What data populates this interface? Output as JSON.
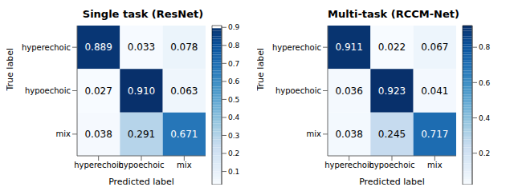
{
  "chart_data": [
    {
      "type": "heatmap",
      "title": "Single task (ResNet)",
      "x_label": "Predicted label",
      "y_label": "True label",
      "categories": [
        "hyperechoic",
        "hypoechoic",
        "mix"
      ],
      "y_categories": [
        "hyperechoic",
        "hypoechoic",
        "mix"
      ],
      "values": [
        [
          0.889,
          0.033,
          0.078
        ],
        [
          0.027,
          0.91,
          0.063
        ],
        [
          0.038,
          0.291,
          0.671
        ]
      ],
      "value_labels": [
        [
          "0.889",
          "0.033",
          "0.078"
        ],
        [
          "0.027",
          "0.910",
          "0.063"
        ],
        [
          "0.038",
          "0.291",
          "0.671"
        ]
      ],
      "colorbar_lim": [
        0.027,
        0.91
      ],
      "colorbar_ticks": [
        0.1,
        0.2,
        0.3,
        0.4,
        0.5,
        0.6,
        0.7,
        0.8,
        0.9
      ]
    },
    {
      "type": "heatmap",
      "title": "Multi-task (RCCM-Net)",
      "x_label": "Predicted label",
      "y_label": "True label",
      "categories": [
        "hyperechoic",
        "hypoechoic",
        "mix"
      ],
      "y_categories": [
        "hyperechoic",
        "hypoechoic",
        "mix"
      ],
      "values": [
        [
          0.911,
          0.022,
          0.067
        ],
        [
          0.036,
          0.923,
          0.041
        ],
        [
          0.038,
          0.245,
          0.717
        ]
      ],
      "value_labels": [
        [
          "0.911",
          "0.022",
          "0.067"
        ],
        [
          "0.036",
          "0.923",
          "0.041"
        ],
        [
          "0.038",
          "0.245",
          "0.717"
        ]
      ],
      "colorbar_lim": [
        0.022,
        0.923
      ],
      "colorbar_ticks": [
        0.2,
        0.4,
        0.6,
        0.8
      ]
    }
  ]
}
